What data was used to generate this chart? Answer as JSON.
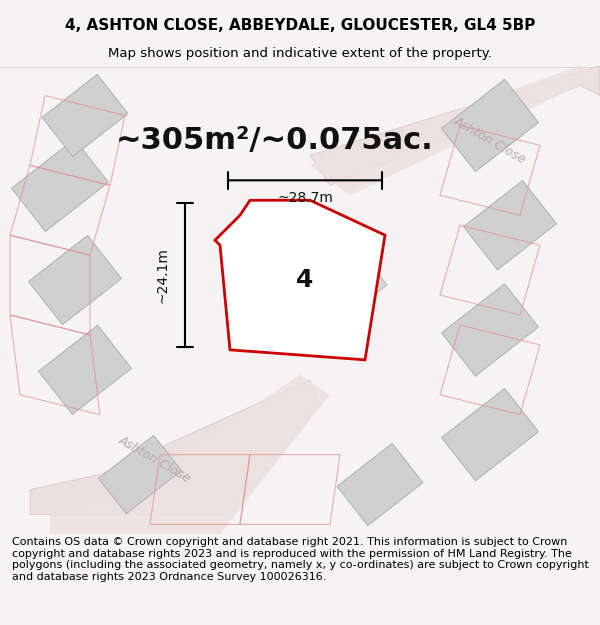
{
  "title_line1": "4, ASHTON CLOSE, ABBEYDALE, GLOUCESTER, GL4 5BP",
  "title_line2": "Map shows position and indicative extent of the property.",
  "footer_text": "Contains OS data © Crown copyright and database right 2021. This information is subject to Crown copyright and database rights 2023 and is reproduced with the permission of HM Land Registry. The polygons (including the associated geometry, namely x, y co-ordinates) are subject to Crown copyright and database rights 2023 Ordnance Survey 100026316.",
  "area_label": "~305m²/~0.075ac.",
  "width_label": "~28.7m",
  "height_label": "~24.1m",
  "property_number": "4",
  "bg_color": "#f0eeee",
  "map_bg": "#f5f3f3",
  "plot_color_fill": "#ffffff",
  "plot_color_edge": "#cc0000",
  "building_fill": "#d8d8d8",
  "road_color": "#e8c8c8",
  "road_text_color": "#b8a0a0",
  "dim_color": "#111111",
  "title_fontsize": 11,
  "footer_fontsize": 8.0,
  "area_fontsize": 22,
  "label_fontsize": 10,
  "number_fontsize": 18
}
